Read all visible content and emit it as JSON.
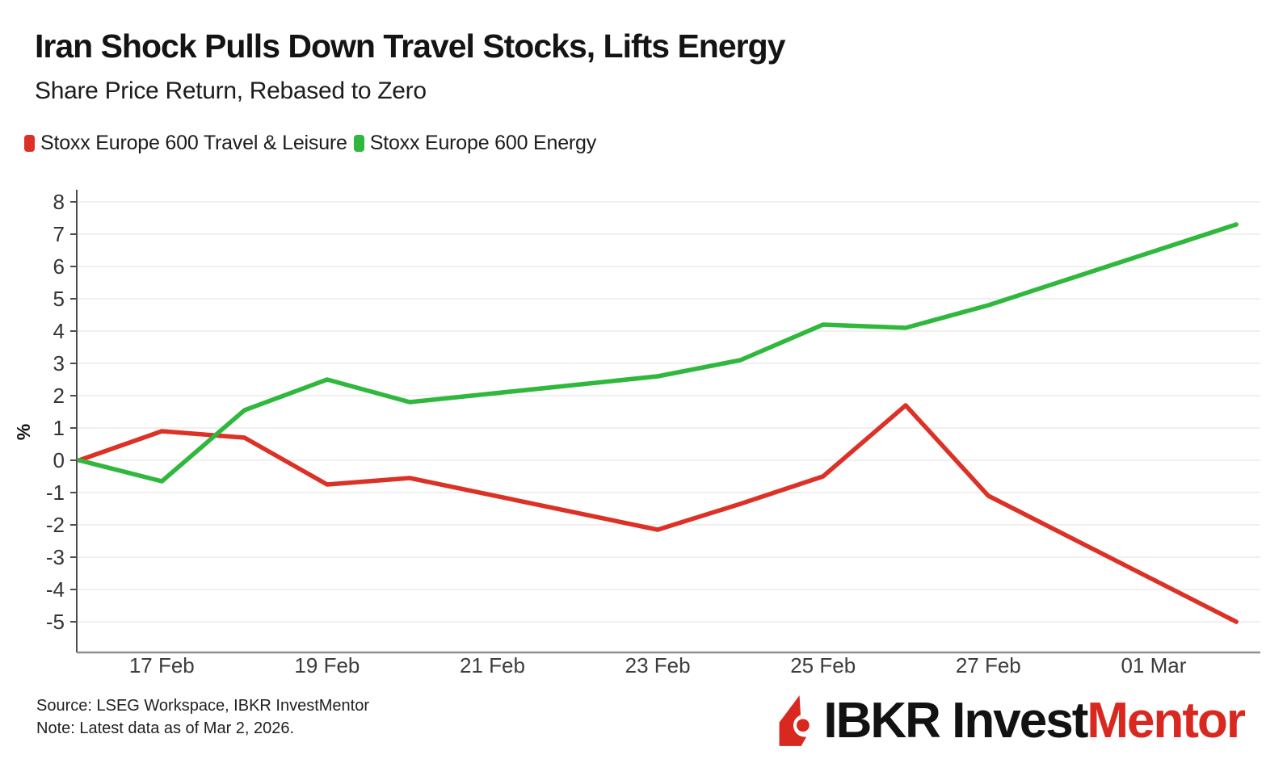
{
  "header": {
    "title": "Iran Shock Pulls Down Travel Stocks, Lifts Energy",
    "subtitle": "Share Price Return, Rebased to Zero"
  },
  "chart_data": {
    "type": "line",
    "title": "Iran Shock Pulls Down Travel Stocks, Lifts Energy",
    "subtitle": "Share Price Return, Rebased to Zero",
    "x_dates": [
      "16 Feb",
      "17 Feb",
      "18 Feb",
      "19 Feb",
      "20 Feb",
      "23 Feb",
      "24 Feb",
      "25 Feb",
      "26 Feb",
      "27 Feb",
      "02 Mar"
    ],
    "x_day_offsets": [
      0,
      1,
      2,
      3,
      4,
      7,
      8,
      9,
      10,
      11,
      14
    ],
    "series": [
      {
        "name": "Stoxx Europe 600 Travel & Leisure",
        "color": "#dc3126",
        "values": [
          0,
          0.9,
          0.7,
          -0.75,
          -0.55,
          -2.15,
          -1.35,
          -0.5,
          1.7,
          -1.1,
          -5.0
        ]
      },
      {
        "name": "Stoxx Europe 600 Energy",
        "color": "#2fb83d",
        "values": [
          0,
          -0.65,
          1.55,
          2.5,
          1.8,
          2.6,
          3.1,
          4.2,
          4.1,
          4.8,
          7.3
        ]
      }
    ],
    "xlabel": "",
    "ylabel": "%",
    "ylim": [
      -5.8,
      8.4
    ],
    "yticks": [
      8,
      7,
      6,
      5,
      4,
      3,
      2,
      1,
      0,
      -1,
      -2,
      -3,
      -4,
      -5
    ],
    "xticks": [
      {
        "day": 1,
        "label": "17 Feb"
      },
      {
        "day": 3,
        "label": "19 Feb"
      },
      {
        "day": 5,
        "label": "21 Feb"
      },
      {
        "day": 7,
        "label": "23 Feb"
      },
      {
        "day": 9,
        "label": "25 Feb"
      },
      {
        "day": 11,
        "label": "27 Feb"
      },
      {
        "day": 13,
        "label": "01 Mar"
      }
    ],
    "grid": true,
    "legend_position": "top-left"
  },
  "footer": {
    "source": "Source: LSEG Workspace, IBKR InvestMentor",
    "note": "Note: Latest data as of Mar 2, 2026."
  },
  "logo": {
    "text_black": "IBKR Invest",
    "text_red": "Mentor",
    "icon_color": "#d8281f"
  }
}
